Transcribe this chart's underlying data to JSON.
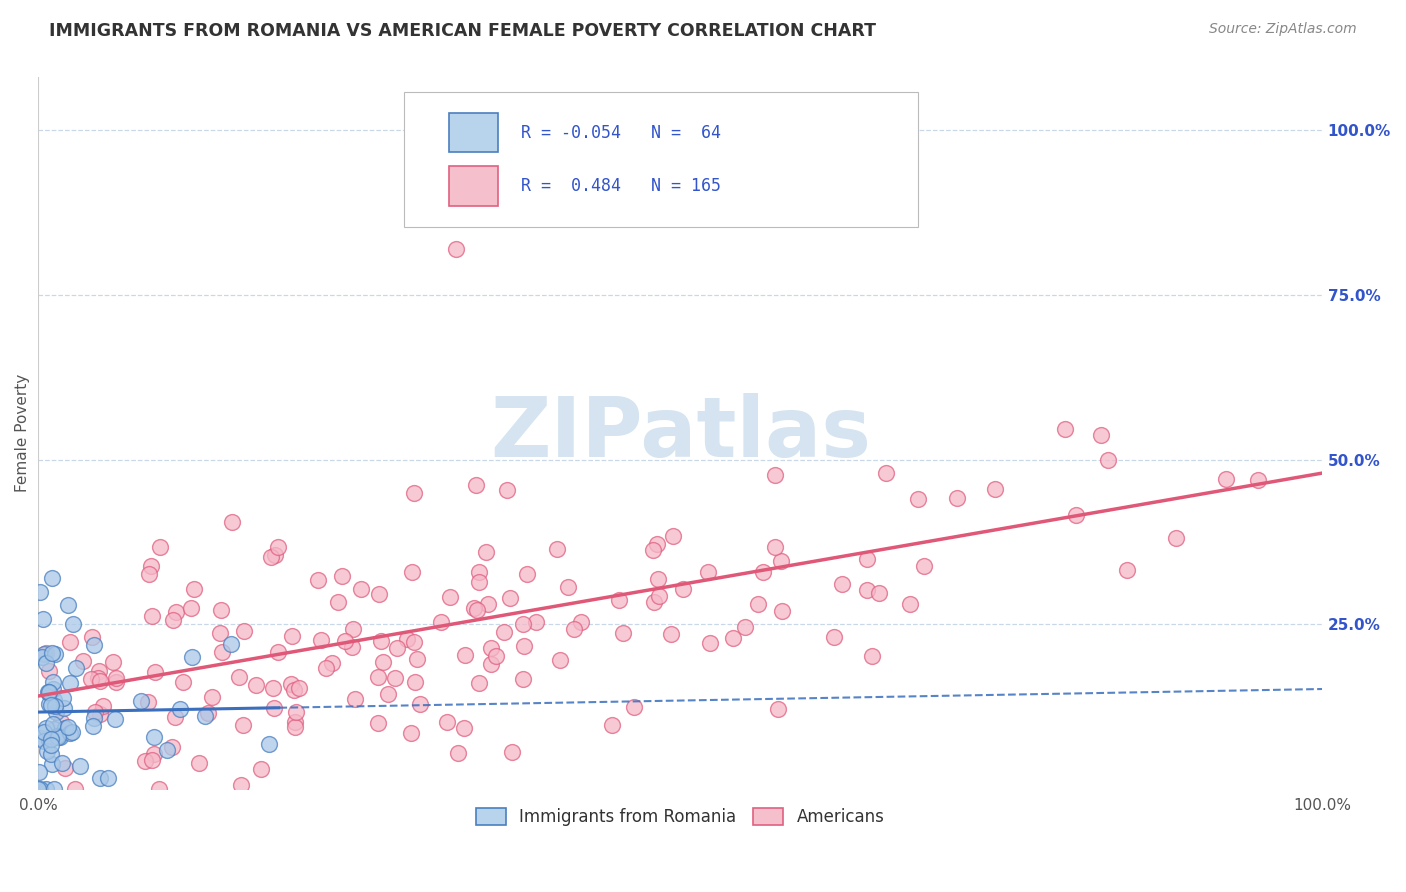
{
  "title": "IMMIGRANTS FROM ROMANIA VS AMERICAN FEMALE POVERTY CORRELATION CHART",
  "source": "Source: ZipAtlas.com",
  "ylabel": "Female Poverty",
  "ytick_labels": [
    "100.0%",
    "75.0%",
    "50.0%",
    "25.0%"
  ],
  "ytick_values": [
    1.0,
    0.75,
    0.5,
    0.25
  ],
  "legend_line1": "R = -0.054   N =  64",
  "legend_line2": "R =  0.484   N = 165",
  "color_blue": "#a8c8e8",
  "color_blue_edge": "#4a7fc0",
  "color_blue_line": "#3a6fbd",
  "color_pink": "#f5b8c8",
  "color_pink_edge": "#e06080",
  "color_pink_line": "#e05878",
  "color_legend_blue_face": "#b8d4ec",
  "color_legend_pink_face": "#f5c0cc",
  "watermark_text": "ZIPatlas",
  "watermark_color": "#d5e4f0",
  "bg_color": "#ffffff",
  "grid_color": "#c8d8e8",
  "title_color": "#333333",
  "source_color": "#888888",
  "legend_text_color": "#3355cc",
  "axis_text_color": "#3355cc",
  "xlim": [
    0,
    1.0
  ],
  "ylim": [
    0.0,
    1.08
  ],
  "seed": 7,
  "n_blue": 64,
  "n_pink": 165,
  "R_blue": -0.054,
  "R_pink": 0.484
}
